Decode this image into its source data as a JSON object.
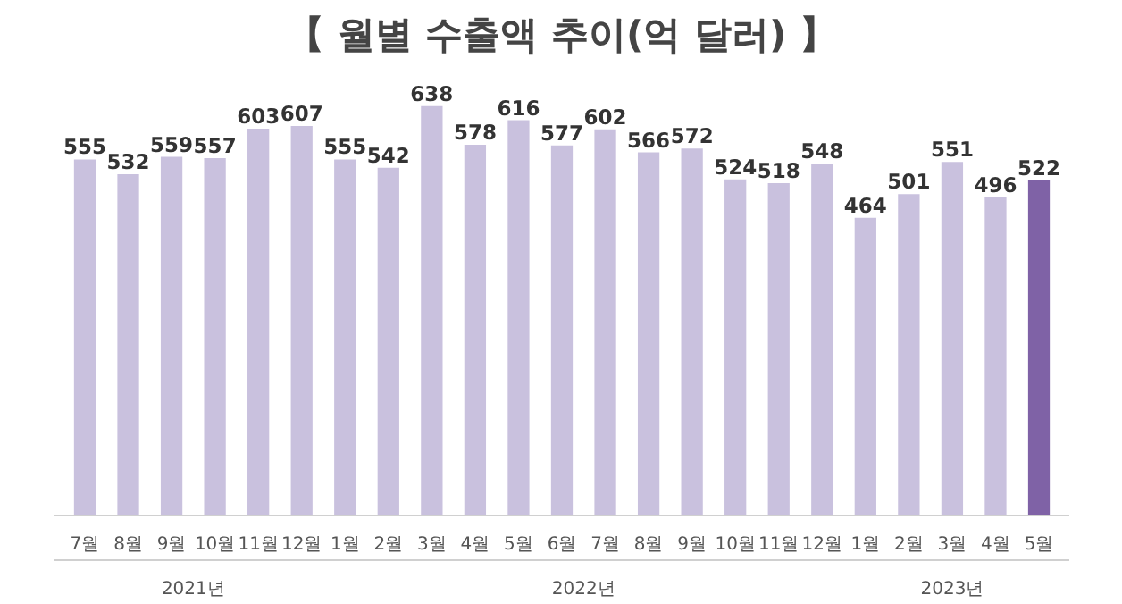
{
  "chart_data": {
    "type": "bar",
    "title": "【 월별 수출액 추이(억 달러) 】",
    "categories": [
      "7월",
      "8월",
      "9월",
      "10월",
      "11월",
      "12월",
      "1월",
      "2월",
      "3월",
      "4월",
      "5월",
      "6월",
      "7월",
      "8월",
      "9월",
      "10월",
      "11월",
      "12월",
      "1월",
      "2월",
      "3월",
      "4월",
      "5월"
    ],
    "values": [
      555,
      532,
      559,
      557,
      603,
      607,
      555,
      542,
      638,
      578,
      616,
      577,
      602,
      566,
      572,
      524,
      518,
      548,
      464,
      501,
      551,
      496,
      522
    ],
    "colors": [
      "#c9c1de",
      "#c9c1de",
      "#c9c1de",
      "#c9c1de",
      "#c9c1de",
      "#c9c1de",
      "#c9c1de",
      "#c9c1de",
      "#c9c1de",
      "#c9c1de",
      "#c9c1de",
      "#c9c1de",
      "#c9c1de",
      "#c9c1de",
      "#c9c1de",
      "#c9c1de",
      "#c9c1de",
      "#c9c1de",
      "#c9c1de",
      "#c9c1de",
      "#c9c1de",
      "#c9c1de",
      "#7f62a6"
    ],
    "annotations": [
      "2021년",
      "2022년",
      "2023년"
    ],
    "data_labels": true,
    "grid": false,
    "tick_labels": "x"
  }
}
